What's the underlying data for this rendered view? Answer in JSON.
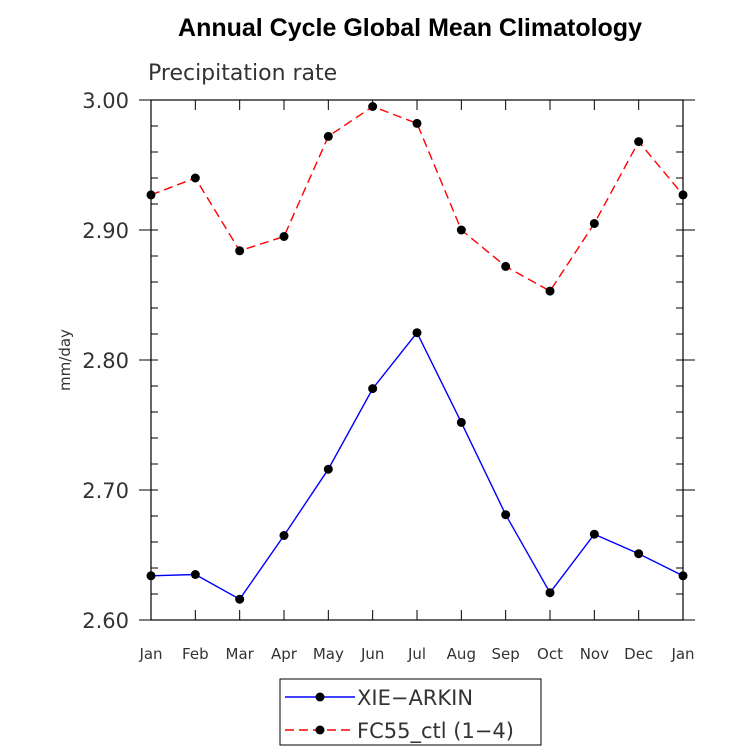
{
  "chart_data": {
    "type": "line",
    "title": "Annual Cycle Global Mean Climatology",
    "subtitle": "Precipitation rate",
    "xlabel": "",
    "ylabel": "mm/day",
    "categories": [
      "Jan",
      "Feb",
      "Mar",
      "Apr",
      "May",
      "Jun",
      "Jul",
      "Aug",
      "Sep",
      "Oct",
      "Nov",
      "Dec",
      "Jan"
    ],
    "ylim": [
      2.6,
      3.0
    ],
    "yticks": [
      "2.60",
      "2.70",
      "2.80",
      "2.90",
      "3.00"
    ],
    "grid": false,
    "legend_position": "bottom-center",
    "series": [
      {
        "name": "XIE−ARKIN",
        "color": "#0000ff",
        "dash": "solid",
        "values": [
          2.634,
          2.635,
          2.616,
          2.665,
          2.716,
          2.778,
          2.821,
          2.752,
          2.681,
          2.621,
          2.666,
          2.651,
          2.634
        ]
      },
      {
        "name": "FC55_ctl (1−4)",
        "color": "#ff0000",
        "dash": "dashed",
        "values": [
          2.927,
          2.94,
          2.884,
          2.895,
          2.972,
          2.995,
          2.982,
          2.9,
          2.872,
          2.853,
          2.905,
          2.968,
          2.927
        ]
      }
    ]
  }
}
